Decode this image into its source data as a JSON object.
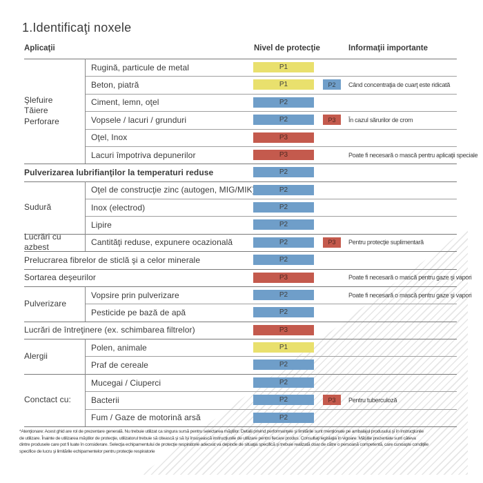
{
  "title": "1.Identificaţi noxele",
  "headers": {
    "applications": "Aplicaţii",
    "protection": "Nivel de protecţie",
    "info": "Informaţii importante"
  },
  "legend_colors": {
    "P1": "#e9e06d",
    "P2": "#6f9ec9",
    "P3": "#c45a4d"
  },
  "groups": [
    {
      "category": "Şlefuire\nTăiere\nPerforare",
      "rows": [
        {
          "label": "Rugină, particule de metal",
          "level": "P1"
        },
        {
          "label": "Beton, piatră",
          "level": "P1",
          "extra": "P2",
          "info": "Când concentraţia de cuarţ este ridicată"
        },
        {
          "label": "Ciment, lemn, oţel",
          "level": "P2"
        },
        {
          "label": "Vopsele / lacuri / grunduri",
          "level": "P2",
          "extra": "P3",
          "info": "În cazul sărurilor de crom"
        },
        {
          "label": "Oţel, Inox",
          "level": "P3"
        },
        {
          "label": "Lacuri împotriva depunerilor",
          "level": "P3",
          "info": "Poate fi necesară o mască pentru aplicaţii speciale"
        }
      ]
    },
    {
      "rows": [
        {
          "label": "Pulverizarea lubrifianţilor la temperaturi reduse",
          "level": "P2",
          "bold": true
        }
      ]
    },
    {
      "category": "Sudură",
      "rows": [
        {
          "label": "Oţel de construcţie zinc (autogen, MIG/MIK)",
          "level": "P2"
        },
        {
          "label": "Inox (electrod)",
          "level": "P2"
        },
        {
          "label": "Lipire",
          "level": "P2"
        }
      ]
    },
    {
      "category": "Lucrări cu azbest",
      "rows": [
        {
          "label": "Cantităţi reduse, expunere ocazională",
          "level": "P2",
          "extra": "P3",
          "info": "Pentru protecţie suplimentară"
        }
      ]
    },
    {
      "rows": [
        {
          "label": "Prelucrarea fibrelor de sticlă şi a celor minerale",
          "level": "P2"
        }
      ]
    },
    {
      "rows": [
        {
          "label": "Sortarea deşeurilor",
          "level": "P3",
          "info": "Poate fi necesară o mască pentru gaze şi vapori"
        }
      ]
    },
    {
      "category": "Pulverizare",
      "rows": [
        {
          "label": "Vopsire prin pulverizare",
          "level": "P2",
          "info": "Poate fi necesară o mască pentru gaze şi vapori"
        },
        {
          "label": "Pesticide pe bază de apă",
          "level": "P2"
        }
      ]
    },
    {
      "rows": [
        {
          "label": "Lucrări de întreţinere (ex. schimbarea filtrelor)",
          "level": "P3"
        }
      ]
    },
    {
      "category": "Alergii",
      "rows": [
        {
          "label": "Polen, animale",
          "level": "P1"
        },
        {
          "label": "Praf de cereale",
          "level": "P2"
        }
      ]
    },
    {
      "category": "Conctact cu:",
      "rows": [
        {
          "label": "Mucegai / Ciuperci",
          "level": "P2"
        },
        {
          "label": "Bacterii",
          "level": "P2",
          "extra": "P3",
          "info": "Pentru tuberculoză"
        },
        {
          "label": "Fum / Gaze de motorină arsă",
          "level": "P2"
        }
      ]
    }
  ],
  "footnote": [
    "*Atenţionare: Acest ghid are rol de prezentare generală. Nu trebuie utilizat ca singura sursă pentru selectarea măştilor. Detalii privind performanţele şi limitările sunt menţionate pe ambalajul produsului şi în instrucţiunile",
    "de utilizare. Înainte de utilizarea măştilor de protecţie, utilizatorul trebuie să citească şi să îşi însuşească instrucţiunile de utilizare pentru fiecare produs. Consultaţi legislaţia în vigoare. Măştile prezentate sunt câteva",
    "dintre produsele care pot fi luate în considerare. Selecţia echipamentului de protecţie respiratorie adecvat va depinde de situaţia specifică şi trebuie realizată doar de către o persoană competentă, care cunoaşte condiţiile",
    "specifice de lucru şi limitările echipamentelor pentru protecţie respiratorie"
  ]
}
